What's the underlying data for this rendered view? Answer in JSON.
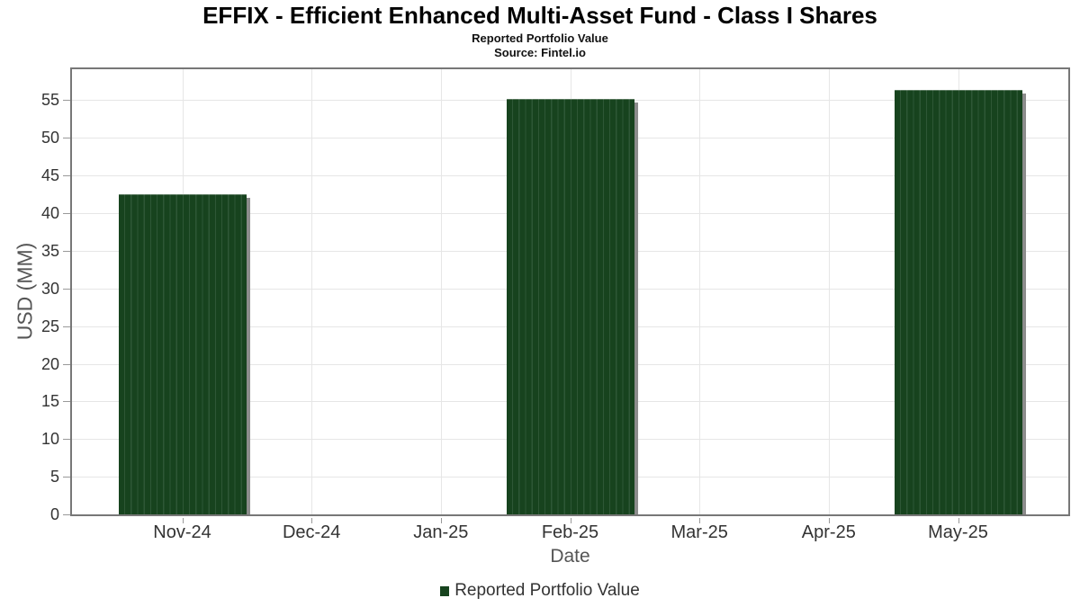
{
  "chart_data": {
    "type": "bar",
    "title": "EFFIX - Efficient Enhanced Multi-Asset Fund - Class I Shares",
    "subtitle": "Reported Portfolio Value",
    "source": "Source: Fintel.io",
    "xlabel": "Date",
    "ylabel": "USD (MM)",
    "categories": [
      "Nov-24",
      "Dec-24",
      "Jan-25",
      "Feb-25",
      "Mar-25",
      "Apr-25",
      "May-25"
    ],
    "series": [
      {
        "name": "Reported Portfolio Value",
        "values": [
          42.5,
          null,
          null,
          55.2,
          null,
          null,
          56.4
        ]
      }
    ],
    "ylim": [
      0,
      59.1
    ],
    "yticks": [
      0,
      5,
      10,
      15,
      20,
      25,
      30,
      35,
      40,
      45,
      50,
      55
    ],
    "grid": true,
    "legend_position": "bottom",
    "colors": {
      "bar_fill": "#17431e",
      "bar_stripe": "#2e5736",
      "bar_shadow": "#8c8c8c",
      "gridline": "#e6e6e6",
      "plot_border": "#777777",
      "tick_text": "#333333",
      "axis_label_text": "#555555",
      "title_text": "#000000"
    }
  }
}
